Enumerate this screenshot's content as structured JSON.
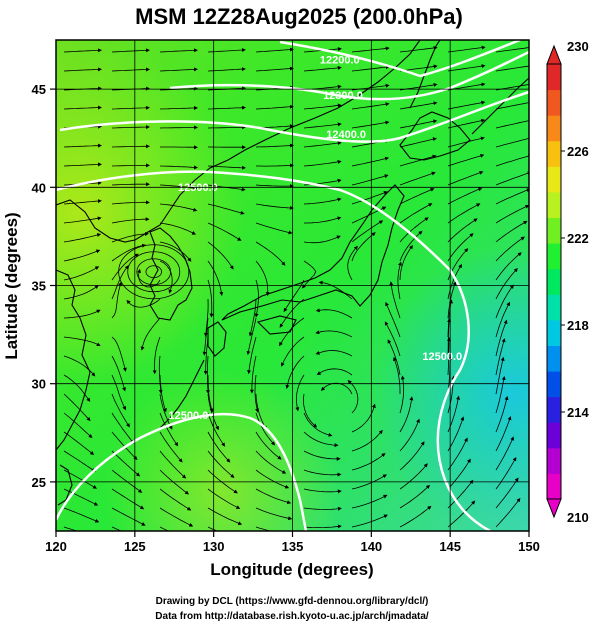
{
  "title": "MSM 12Z28Aug2025 (200.0hPa)",
  "xlabel": "Longitude (degrees)",
  "ylabel": "Latitude  (degrees)",
  "credits": [
    "Drawing by DCL (https://www.gfd-dennou.org/library/dcl/)",
    "Data from http://database.rish.kyoto-u.ac.jp/arch/jmadata/"
  ],
  "map": {
    "lon_range": [
      120,
      150
    ],
    "lat_range": [
      22.5,
      47.5
    ],
    "lon_ticks": [
      {
        "value": 120,
        "label": "120"
      },
      {
        "value": 125,
        "label": "125"
      },
      {
        "value": 130,
        "label": "130"
      },
      {
        "value": 135,
        "label": "135"
      },
      {
        "value": 140,
        "label": "140"
      },
      {
        "value": 145,
        "label": "145"
      },
      {
        "value": 150,
        "label": "150"
      }
    ],
    "lat_ticks": [
      {
        "value": 25,
        "label": "25"
      },
      {
        "value": 30,
        "label": "30"
      },
      {
        "value": 35,
        "label": "35"
      },
      {
        "value": 40,
        "label": "40"
      },
      {
        "value": 45,
        "label": "45"
      }
    ],
    "grid": true
  },
  "colorbar": {
    "min": 210,
    "max": 230,
    "tick_labels": [
      {
        "value": 210,
        "label": "210"
      },
      {
        "value": 214,
        "label": "214"
      },
      {
        "value": 218,
        "label": "218"
      },
      {
        "value": 222,
        "label": "222"
      },
      {
        "value": 226,
        "label": "226"
      },
      {
        "value": 230,
        "label": "230"
      }
    ],
    "colors": [
      "#e800c8",
      "#b400d0",
      "#6c00d8",
      "#2a20e0",
      "#0050e8",
      "#0090f0",
      "#00c8e0",
      "#00e0a8",
      "#00e860",
      "#20f030",
      "#70f020",
      "#b8f020",
      "#e8e818",
      "#f8c010",
      "#f88818",
      "#f05820",
      "#e02828"
    ]
  },
  "contour_labels": [
    {
      "text": "12200.0",
      "lon": 138.0,
      "lat": 46.3
    },
    {
      "text": "12300.0",
      "lon": 138.2,
      "lat": 44.5
    },
    {
      "text": "12400.0",
      "lon": 138.4,
      "lat": 42.5
    },
    {
      "text": "12500.0",
      "lon": 129.0,
      "lat": 39.8
    },
    {
      "text": "12500.0",
      "lon": 128.4,
      "lat": 28.2
    },
    {
      "text": "12500.0",
      "lon": 144.5,
      "lat": 31.2
    }
  ]
}
